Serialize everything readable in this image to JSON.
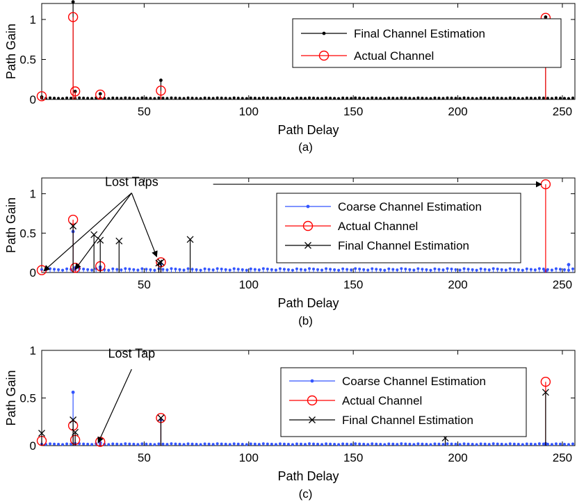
{
  "figure": {
    "colors": {
      "estimate": "#000000",
      "actual": "#ff0000",
      "coarse": "#3355ff"
    }
  },
  "chart_data": [
    {
      "type": "stem",
      "panel": "(a)",
      "xlabel": "Path Delay",
      "ylabel": "Path Gain",
      "xlim": [
        1,
        256
      ],
      "ylim": [
        0,
        1.2
      ],
      "xticks": [
        50,
        100,
        150,
        200,
        250
      ],
      "yticks": [
        0,
        0.5,
        1
      ],
      "legend_position": "top-right",
      "series": [
        {
          "name": "Final Channel Estimation",
          "style": "dot-stem",
          "color": "#000000",
          "points": [
            [
              1,
              0.03
            ],
            [
              16,
              1.22
            ],
            [
              17,
              0.1
            ],
            [
              29,
              0.07
            ],
            [
              58,
              0.24
            ],
            [
              242,
              1.03
            ]
          ],
          "floor": {
            "from": 1,
            "to": 256,
            "step": 2,
            "level": 0.02
          }
        },
        {
          "name": "Actual Channel",
          "style": "circle-stem",
          "color": "#ff0000",
          "points": [
            [
              1,
              0.04
            ],
            [
              16,
              1.03
            ],
            [
              17,
              0.1
            ],
            [
              29,
              0.06
            ],
            [
              58,
              0.11
            ],
            [
              242,
              1.02
            ]
          ]
        }
      ],
      "annotations": []
    },
    {
      "type": "stem",
      "panel": "(b)",
      "xlabel": "Path Delay",
      "ylabel": "Path Gain",
      "xlim": [
        1,
        256
      ],
      "ylim": [
        0,
        1.2
      ],
      "xticks": [
        50,
        100,
        150,
        200,
        250
      ],
      "yticks": [
        0,
        0.5,
        1
      ],
      "legend_position": "top-right",
      "series": [
        {
          "name": "Coarse Channel Estimation",
          "style": "dot-stem",
          "color": "#3355ff",
          "points": [
            [
              16,
              0.52
            ],
            [
              17,
              0.06
            ],
            [
              29,
              0.07
            ],
            [
              58,
              0.11
            ],
            [
              242,
              0.02
            ],
            [
              253,
              0.1
            ]
          ],
          "floor": {
            "from": 1,
            "to": 256,
            "step": 2,
            "level": 0.05
          }
        },
        {
          "name": "Actual Channel",
          "style": "circle-stem",
          "color": "#ff0000",
          "points": [
            [
              1,
              0.03
            ],
            [
              16,
              0.67
            ],
            [
              17,
              0.06
            ],
            [
              29,
              0.08
            ],
            [
              58,
              0.13
            ],
            [
              242,
              1.12
            ]
          ]
        },
        {
          "name": "Final Channel Estimation",
          "style": "x-stem",
          "color": "#000000",
          "points": [
            [
              16,
              0.59
            ],
            [
              26,
              0.48
            ],
            [
              29,
              0.41
            ],
            [
              38,
              0.4
            ],
            [
              57,
              0.12
            ],
            [
              58,
              0.13
            ],
            [
              72,
              0.42
            ]
          ]
        }
      ],
      "annotations": [
        {
          "text": "Lost Taps",
          "label_at": [
            44,
            1.08
          ],
          "arrows": [
            {
              "from": [
                44,
                1.08
              ],
              "to": [
                2,
                0.02
              ]
            },
            {
              "from": [
                44,
                1.08
              ],
              "to": [
                17,
                0.04
              ]
            },
            {
              "from": [
                44,
                1.08
              ],
              "to": [
                56,
                0.2
              ]
            },
            {
              "from": [
                83,
                1.12
              ],
              "to": [
                240,
                1.12
              ]
            }
          ]
        }
      ]
    },
    {
      "type": "stem",
      "panel": "(c)",
      "xlabel": "Path Delay",
      "ylabel": "Path Gain",
      "xlim": [
        1,
        256
      ],
      "ylim": [
        0,
        1
      ],
      "xticks": [
        50,
        100,
        150,
        200,
        250
      ],
      "yticks": [
        0,
        0.5,
        1
      ],
      "legend_position": "top-right",
      "series": [
        {
          "name": "Coarse Channel Estimation",
          "style": "dot-stem",
          "color": "#3355ff",
          "points": [
            [
              16,
              0.56
            ],
            [
              17,
              0.02
            ],
            [
              29,
              0.03
            ],
            [
              58,
              0.27
            ],
            [
              242,
              0.02
            ]
          ],
          "floor": {
            "from": 1,
            "to": 256,
            "step": 2,
            "level": 0.02
          }
        },
        {
          "name": "Actual Channel",
          "style": "circle-stem",
          "color": "#ff0000",
          "points": [
            [
              1,
              0.05
            ],
            [
              16,
              0.21
            ],
            [
              17,
              0.06
            ],
            [
              29,
              0.04
            ],
            [
              58,
              0.29
            ],
            [
              242,
              0.67
            ]
          ]
        },
        {
          "name": "Final Channel Estimation",
          "style": "x-stem",
          "color": "#000000",
          "points": [
            [
              1,
              0.13
            ],
            [
              16,
              0.27
            ],
            [
              17,
              0.14
            ],
            [
              58,
              0.29
            ],
            [
              194,
              0.08
            ],
            [
              242,
              0.56
            ]
          ]
        }
      ],
      "annotations": [
        {
          "text": "Lost Tap",
          "label_at": [
            44,
            0.91
          ],
          "arrows": [
            {
              "from": [
                44,
                0.86
              ],
              "to": [
                28,
                0.03
              ]
            }
          ]
        }
      ]
    }
  ]
}
